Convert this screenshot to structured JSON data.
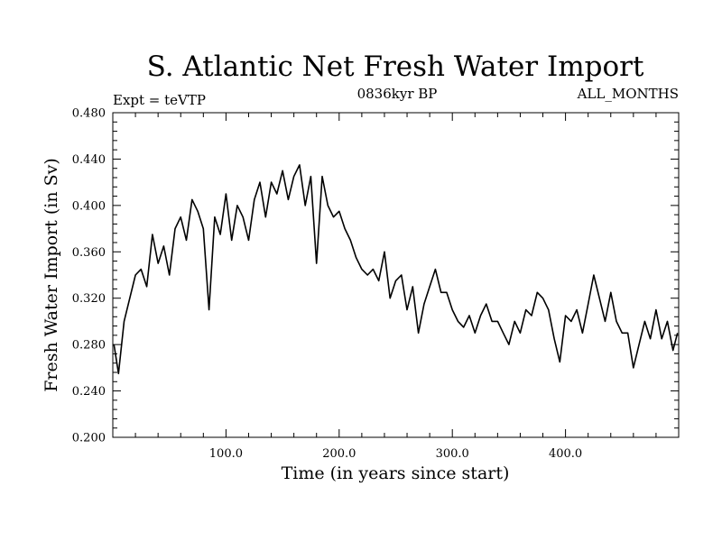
{
  "chart_data": {
    "type": "line",
    "title": "S. Atlantic Net Fresh Water Import",
    "subtitle_left": "Expt = teVTP",
    "subtitle_center": "0836kyr BP",
    "subtitle_right": "ALL_MONTHS",
    "xlabel": "Time (in years since start)",
    "ylabel": "Fresh Water Import (in Sv)",
    "xlim": [
      0,
      500
    ],
    "ylim": [
      0.2,
      0.48
    ],
    "xticks": [
      100,
      200,
      300,
      400
    ],
    "xtick_labels": [
      "100.0",
      "200.0",
      "300.0",
      "400.0"
    ],
    "yticks": [
      0.2,
      0.24,
      0.28,
      0.32,
      0.36,
      0.4,
      0.44,
      0.48
    ],
    "ytick_labels": [
      "0.200",
      "0.240",
      "0.280",
      "0.320",
      "0.360",
      "0.400",
      "0.440",
      "0.480"
    ],
    "grid": false,
    "series": [
      {
        "name": "fresh water import",
        "color": "#000000",
        "x": [
          1,
          5,
          10,
          15,
          20,
          25,
          30,
          35,
          40,
          45,
          50,
          55,
          60,
          65,
          70,
          75,
          80,
          85,
          90,
          95,
          100,
          105,
          110,
          115,
          120,
          125,
          130,
          135,
          140,
          145,
          150,
          155,
          160,
          165,
          170,
          175,
          180,
          185,
          190,
          195,
          200,
          205,
          210,
          215,
          220,
          225,
          230,
          235,
          240,
          245,
          250,
          255,
          260,
          265,
          270,
          275,
          280,
          285,
          290,
          295,
          300,
          305,
          310,
          315,
          320,
          325,
          330,
          335,
          340,
          345,
          350,
          355,
          360,
          365,
          370,
          375,
          380,
          385,
          390,
          395,
          400,
          405,
          410,
          415,
          420,
          425,
          430,
          435,
          440,
          445,
          450,
          455,
          460,
          465,
          470,
          475,
          480,
          485,
          490,
          495,
          499
        ],
        "values": [
          0.28,
          0.255,
          0.3,
          0.32,
          0.34,
          0.345,
          0.33,
          0.375,
          0.35,
          0.365,
          0.34,
          0.38,
          0.39,
          0.37,
          0.405,
          0.395,
          0.38,
          0.31,
          0.39,
          0.375,
          0.41,
          0.37,
          0.4,
          0.39,
          0.37,
          0.405,
          0.42,
          0.39,
          0.42,
          0.41,
          0.43,
          0.405,
          0.425,
          0.435,
          0.4,
          0.425,
          0.35,
          0.425,
          0.4,
          0.39,
          0.395,
          0.38,
          0.37,
          0.355,
          0.345,
          0.34,
          0.345,
          0.335,
          0.36,
          0.32,
          0.335,
          0.34,
          0.31,
          0.33,
          0.29,
          0.315,
          0.33,
          0.345,
          0.325,
          0.325,
          0.31,
          0.3,
          0.295,
          0.305,
          0.29,
          0.305,
          0.315,
          0.3,
          0.3,
          0.29,
          0.28,
          0.3,
          0.29,
          0.31,
          0.305,
          0.325,
          0.32,
          0.31,
          0.285,
          0.265,
          0.305,
          0.3,
          0.31,
          0.29,
          0.315,
          0.34,
          0.32,
          0.3,
          0.325,
          0.3,
          0.29,
          0.29,
          0.26,
          0.28,
          0.3,
          0.285,
          0.31,
          0.285,
          0.3,
          0.275,
          0.29
        ]
      }
    ]
  }
}
